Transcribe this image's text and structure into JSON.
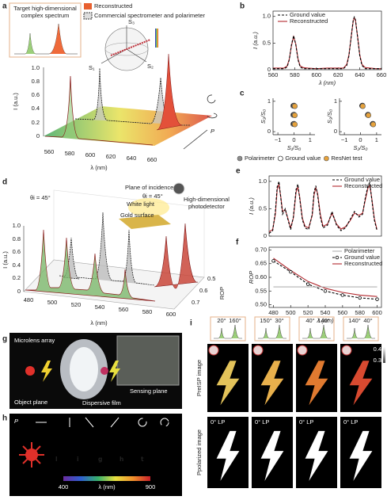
{
  "chart_data": [
    {
      "panel": "b",
      "type": "line",
      "xlabel": "λ (nm)",
      "ylabel": "I (a.u.)",
      "xlim": [
        560,
        660
      ],
      "xticks": [
        560,
        580,
        600,
        620,
        640,
        660
      ],
      "ylim": [
        0,
        1.1
      ],
      "yticks": [
        0,
        0.5,
        {
          "value": 1,
          "label": "1.0"
        }
      ],
      "legend": "upper left",
      "x": [
        560,
        565,
        570,
        573,
        575,
        577,
        579,
        581,
        583,
        585,
        588,
        592,
        600,
        610,
        620,
        625,
        628,
        630,
        632,
        634,
        635,
        636,
        638,
        640,
        642,
        645,
        650,
        655,
        660
      ],
      "series": [
        {
          "name": "Ground value",
          "color": "#000000",
          "dash": true,
          "values": [
            0.02,
            0.02,
            0.02,
            0.05,
            0.19,
            0.47,
            0.64,
            0.47,
            0.19,
            0.05,
            0.02,
            0.02,
            0.02,
            0.02,
            0.02,
            0.02,
            0.08,
            0.26,
            0.61,
            0.94,
            0.99,
            0.94,
            0.61,
            0.26,
            0.08,
            0.02,
            0.02,
            0.02,
            0.02
          ]
        },
        {
          "name": "Reconstructed",
          "color": "#b2282e",
          "values": [
            0.03,
            0.03,
            0.03,
            0.07,
            0.2,
            0.45,
            0.62,
            0.48,
            0.21,
            0.07,
            0.04,
            0.03,
            0.02,
            0.03,
            0.03,
            0.03,
            0.1,
            0.28,
            0.6,
            0.92,
            0.97,
            0.93,
            0.62,
            0.28,
            0.1,
            0.04,
            0.03,
            0.02,
            0.02
          ]
        }
      ]
    },
    {
      "panel": "c",
      "type": "scatter",
      "xlabel": "S₁/S₀",
      "ylabel": "S₃/S₀",
      "xlim": [
        -1.3,
        1.3
      ],
      "xticks": [
        {
          "value": -1,
          "label": "−1"
        },
        0,
        1
      ],
      "ylim": [
        -0.1,
        1.1
      ],
      "yticks": [
        0,
        1
      ],
      "legend": "bottom",
      "series": [
        {
          "name": "Polarimeter",
          "color": "#8c8c8c",
          "x": [
            -0.05,
            -0.05,
            -0.05
          ],
          "values": [
            0.85,
            0.55,
            0.25
          ]
        },
        {
          "name": "Ground value",
          "color": "#000000",
          "hollow": true,
          "x": [
            0,
            0,
            0
          ],
          "values": [
            0.86,
            0.56,
            0.26
          ]
        },
        {
          "name": "ResNet test",
          "color": "#e6a23c",
          "x": [
            0.05,
            0.05,
            0.05
          ],
          "values": [
            0.84,
            0.54,
            0.24
          ]
        }
      ]
    },
    {
      "type": "scatter",
      "xlabel": "S₂/S₀",
      "ylabel": "S₃/S₀",
      "xlim": [
        -1.3,
        1.3
      ],
      "xticks": [
        {
          "value": -1,
          "label": "−1"
        },
        0,
        1
      ],
      "ylim": [
        -0.1,
        1.1
      ],
      "yticks": [
        0,
        1
      ],
      "series": [
        {
          "color": "#8c8c8c",
          "x": [
            0.1,
            0.45,
            0.75
          ],
          "values": [
            0.85,
            0.55,
            0.25
          ]
        },
        {
          "color": "#000000",
          "hollow": true,
          "x": [
            0.12,
            0.47,
            0.77
          ],
          "values": [
            0.86,
            0.56,
            0.26
          ]
        },
        {
          "color": "#e6a23c",
          "x": [
            0.14,
            0.49,
            0.79
          ],
          "values": [
            0.84,
            0.54,
            0.24
          ]
        }
      ]
    },
    {
      "panel": "e",
      "type": "line",
      "ylabel": "I (a.u.)",
      "xlim": [
        480,
        605
      ],
      "ylim": [
        0,
        1.1
      ],
      "yticks": [
        0,
        0.5,
        {
          "value": 1,
          "label": "1.0"
        }
      ],
      "legend": "upper right",
      "x": [
        480,
        484,
        487,
        489,
        491,
        493,
        495,
        498,
        501,
        504,
        507,
        510,
        512,
        514,
        517,
        520,
        524,
        528,
        530,
        532,
        534,
        537,
        540,
        545,
        550,
        555,
        560,
        565,
        570,
        575,
        580,
        584,
        587,
        590,
        592,
        594,
        597,
        600
      ],
      "series": [
        {
          "name": "Ground value",
          "color": "#000000",
          "dash": true,
          "values": [
            0.05,
            0.1,
            0.45,
            0.9,
            1.0,
            0.7,
            0.4,
            0.5,
            0.3,
            0.12,
            0.35,
            0.85,
            0.95,
            0.7,
            0.3,
            0.15,
            0.12,
            0.4,
            0.8,
            0.92,
            0.75,
            0.35,
            0.15,
            0.2,
            0.45,
            0.2,
            0.1,
            0.15,
            0.3,
            0.45,
            0.35,
            0.4,
            0.7,
            0.92,
            0.98,
            0.7,
            0.3,
            0.1
          ]
        },
        {
          "name": "Reconstructed",
          "color": "#b2282e",
          "values": [
            0.08,
            0.12,
            0.4,
            0.85,
            0.95,
            0.72,
            0.45,
            0.48,
            0.32,
            0.15,
            0.33,
            0.8,
            0.9,
            0.72,
            0.33,
            0.18,
            0.15,
            0.38,
            0.75,
            0.88,
            0.78,
            0.4,
            0.18,
            0.22,
            0.42,
            0.22,
            0.13,
            0.17,
            0.28,
            0.42,
            0.38,
            0.42,
            0.66,
            0.88,
            0.93,
            0.72,
            0.33,
            0.12
          ]
        }
      ]
    },
    {
      "panel": "f",
      "type": "line",
      "xlabel": "λ (nm)",
      "ylabel": "ROP",
      "xlim": [
        475,
        605
      ],
      "xticks": [
        480,
        500,
        520,
        540,
        560,
        580,
        600
      ],
      "ylim": [
        0.49,
        0.71
      ],
      "yticks": [
        {
          "value": 0.5,
          "label": "0.50"
        },
        {
          "value": 0.55,
          "label": "0.55"
        },
        {
          "value": 0.6,
          "label": "0.60"
        },
        {
          "value": 0.65,
          "label": "0.65"
        },
        {
          "value": 0.7,
          "label": "0.70"
        }
      ],
      "legend": "upper right",
      "series": [
        {
          "name": "Polarimeter",
          "color": "#b0b0b0",
          "x": [
            480,
            600
          ],
          "values": [
            0.565,
            0.565
          ]
        },
        {
          "name": "Ground value",
          "color": "#000000",
          "dash": true,
          "marker": "circle",
          "x": [
            480,
            500,
            520,
            540,
            560,
            580,
            600
          ],
          "values": [
            0.66,
            0.62,
            0.575,
            0.55,
            0.535,
            0.525,
            0.52
          ]
        },
        {
          "name": "Reconstructed",
          "color": "#b2282e",
          "x": [
            480,
            500,
            520,
            540,
            560,
            580,
            600
          ],
          "values": [
            0.67,
            0.625,
            0.585,
            0.56,
            0.545,
            0.535,
            0.53
          ]
        }
      ]
    }
  ],
  "panel_a": {
    "letter": "a",
    "target_title": [
      "Target high-dimensional",
      "complex spectrum"
    ],
    "legend": [
      "Reconstructed",
      "Commercial spectrometer and polarimeter"
    ],
    "stokes": [
      "S₃",
      "S₁",
      "S₂"
    ],
    "ylabel": "I (a.u.)",
    "yticks": [
      "0",
      "0.2",
      "0.4",
      "0.6",
      "0.8",
      "1.0"
    ],
    "xticks": [
      "560",
      "580",
      "600",
      "620",
      "640",
      "660"
    ],
    "xlabel": "λ (nm)",
    "p_label": "P"
  },
  "panel_d": {
    "letter": "d",
    "theta": "θi = 45°",
    "inset": [
      "Plane of incidence",
      "θi = 45°",
      "White light",
      "Gold surface",
      "High-dimensional",
      "photodetector"
    ],
    "yticks": [
      "0",
      "0.2",
      "0.4",
      "0.6",
      "0.8",
      "1.0"
    ],
    "xticks": [
      "480",
      "500",
      "520",
      "540",
      "560",
      "580",
      "600"
    ],
    "rop_ticks": [
      "0.5",
      "0.6",
      "0.7"
    ],
    "xlabel": "λ (nm)",
    "zlabel": "ROP",
    "ylabel": "I (a.u.)"
  },
  "panel_g": {
    "letter": "g",
    "labels": [
      "Microlens array",
      "Object plane",
      "Sensing plane",
      "Dispersive film"
    ]
  },
  "panel_h": {
    "letter": "h",
    "p_label": "P",
    "word": [
      "l",
      "i",
      "g",
      "h",
      "t"
    ],
    "colorbar": [
      "400",
      "λ (nm)",
      "900"
    ]
  },
  "panel_i": {
    "letter": "i",
    "angles": [
      [
        "20°",
        "160°"
      ],
      [
        "150°",
        "30°"
      ],
      [
        "40°",
        "140°"
      ],
      [
        "140°",
        "40°"
      ]
    ],
    "row_labels": [
      "PreISP image",
      "Ppolarized image"
    ],
    "lp_label": [
      "0° LP",
      "0° LP",
      "0° LP",
      "0° LP"
    ],
    "colorbar": [
      "0.4",
      "0.3"
    ]
  }
}
